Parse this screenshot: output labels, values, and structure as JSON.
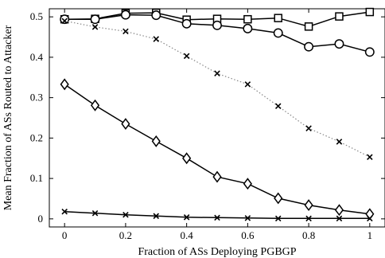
{
  "chart_data": {
    "type": "line",
    "xlabel": "Fraction of ASs Deploying PGBGP",
    "ylabel": "Mean Fraction of ASs Routed to Attacker",
    "xlim": [
      -0.05,
      1.05
    ],
    "ylim": [
      -0.02,
      0.52
    ],
    "xticks": [
      "0",
      "0.2",
      "0.4",
      "0.6",
      "0.8",
      "1"
    ],
    "yticks": [
      "0",
      "0.1",
      "0.2",
      "0.3",
      "0.4",
      "0.5"
    ],
    "legend": "none",
    "grid": false,
    "x": [
      0,
      0.1,
      0.2,
      0.3,
      0.4,
      0.5,
      0.6,
      0.7,
      0.8,
      0.9,
      1.0
    ],
    "series": [
      {
        "marker": "square",
        "line": "solid",
        "color": "#000000",
        "values": [
          0.494,
          0.495,
          0.509,
          0.51,
          0.493,
          0.495,
          0.494,
          0.497,
          0.476,
          0.501,
          0.512
        ]
      },
      {
        "marker": "circle",
        "line": "solid",
        "color": "#000000",
        "values": [
          0.494,
          0.494,
          0.505,
          0.504,
          0.483,
          0.479,
          0.471,
          0.46,
          0.426,
          0.433,
          0.413
        ]
      },
      {
        "marker": "x",
        "line": "dotted",
        "color": "#888888",
        "values": [
          0.49,
          0.475,
          0.464,
          0.445,
          0.403,
          0.36,
          0.333,
          0.279,
          0.224,
          0.191,
          0.153
        ]
      },
      {
        "marker": "diamond",
        "line": "solid",
        "color": "#000000",
        "values": [
          0.333,
          0.281,
          0.235,
          0.192,
          0.15,
          0.104,
          0.087,
          0.051,
          0.034,
          0.022,
          0.012
        ]
      },
      {
        "marker": "x",
        "line": "solid",
        "color": "#000000",
        "values": [
          0.018,
          0.014,
          0.01,
          0.007,
          0.004,
          0.003,
          0.002,
          0.001,
          0.001,
          0.001,
          0.001
        ]
      }
    ]
  }
}
